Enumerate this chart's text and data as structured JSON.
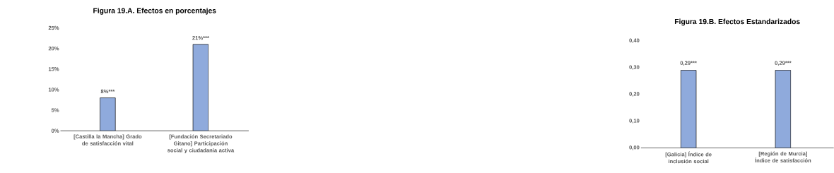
{
  "chart_data": [
    {
      "type": "bar",
      "title": "Figura 19.A. Efectos en porcentajes",
      "categories": [
        "[Castilla la Mancha] Grado de satisfacción vital",
        "[Fundación Secretariado Gitano] Participación social y ciudadanía activa"
      ],
      "values": [
        8,
        21
      ],
      "value_labels": [
        "8%***",
        "21%***"
      ],
      "color": "#8faadc",
      "ylim": [
        0,
        25
      ],
      "yticks": [
        {
          "value": 0,
          "label": "0%"
        },
        {
          "value": 5,
          "label": "5%"
        },
        {
          "value": 10,
          "label": "10%"
        },
        {
          "value": 15,
          "label": "15%"
        },
        {
          "value": 20,
          "label": "20%"
        },
        {
          "value": 25,
          "label": "25%"
        }
      ],
      "grid": false
    },
    {
      "type": "bar",
      "title": "Figura 19.B. Efectos Estandarizados",
      "categories": [
        "[Galicia] Índice de inclusión social",
        "[Región de Murcia] Índice de satisfacción"
      ],
      "values": [
        0.29,
        0.29
      ],
      "value_labels": [
        "0,29***",
        "0,29***"
      ],
      "color": "#8faadc",
      "ylim": [
        0,
        0.4
      ],
      "yticks": [
        {
          "value": 0,
          "label": "0,00"
        },
        {
          "value": 0.1,
          "label": "0,10"
        },
        {
          "value": 0.2,
          "label": "0,20"
        },
        {
          "value": 0.3,
          "label": "0,30"
        },
        {
          "value": 0.4,
          "label": "0,40"
        }
      ],
      "grid": false
    }
  ]
}
